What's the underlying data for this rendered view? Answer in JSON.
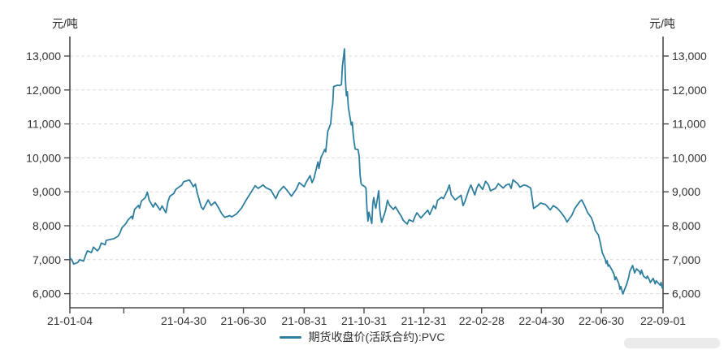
{
  "chart_data": {
    "type": "line",
    "title": "",
    "y_unit_left": "元/吨",
    "y_unit_right": "元/吨",
    "legend_label": "期货收盘价(活跃合约):PVC",
    "legend_position": "bottom-center",
    "grid": "horizontal-dashed",
    "ylim": [
      5584,
      13574
    ],
    "y_ticks": [
      6000,
      7000,
      8000,
      9000,
      10000,
      11000,
      12000,
      13000
    ],
    "x_ticks": [
      {
        "date": "21-01-04",
        "label": "21-01-04"
      },
      {
        "date": "21-02-28",
        "label": ""
      },
      {
        "date": "21-04-30",
        "label": "21-04-30"
      },
      {
        "date": "21-06-30",
        "label": "21-06-30"
      },
      {
        "date": "21-08-31",
        "label": "21-08-31"
      },
      {
        "date": "21-10-31",
        "label": "21-10-31"
      },
      {
        "date": "21-12-31",
        "label": "21-12-31"
      },
      {
        "date": "22-02-28",
        "label": "22-02-28"
      },
      {
        "date": "22-04-30",
        "label": "22-04-30"
      },
      {
        "date": "22-06-30",
        "label": "22-06-30"
      },
      {
        "date": "22-09-01",
        "label": "22-09-01"
      }
    ],
    "series": [
      {
        "name": "期货收盘价(活跃合约):PVC",
        "color": "#2e7f9f",
        "points": [
          [
            "21-01-04",
            7060
          ],
          [
            "21-01-06",
            6990
          ],
          [
            "21-01-08",
            6870
          ],
          [
            "21-01-12",
            6920
          ],
          [
            "21-01-14",
            7000
          ],
          [
            "21-01-18",
            6960
          ],
          [
            "21-01-20",
            7130
          ],
          [
            "21-01-22",
            7260
          ],
          [
            "21-01-26",
            7210
          ],
          [
            "21-01-28",
            7370
          ],
          [
            "21-02-01",
            7260
          ],
          [
            "21-02-03",
            7330
          ],
          [
            "21-02-05",
            7490
          ],
          [
            "21-02-09",
            7440
          ],
          [
            "21-02-10",
            7570
          ],
          [
            "21-02-18",
            7620
          ],
          [
            "21-02-22",
            7690
          ],
          [
            "21-02-24",
            7780
          ],
          [
            "21-02-26",
            7935
          ],
          [
            "21-03-02",
            8060
          ],
          [
            "21-03-04",
            8160
          ],
          [
            "21-03-08",
            8280
          ],
          [
            "21-03-09",
            8200
          ],
          [
            "21-03-11",
            8480
          ],
          [
            "21-03-15",
            8600
          ],
          [
            "21-03-16",
            8520
          ],
          [
            "21-03-18",
            8730
          ],
          [
            "21-03-22",
            8830
          ],
          [
            "21-03-24",
            8990
          ],
          [
            "21-03-26",
            8750
          ],
          [
            "21-03-30",
            8550
          ],
          [
            "21-04-01",
            8670
          ],
          [
            "21-04-06",
            8465
          ],
          [
            "21-04-08",
            8585
          ],
          [
            "21-04-12",
            8385
          ],
          [
            "21-04-14",
            8710
          ],
          [
            "21-04-16",
            8870
          ],
          [
            "21-04-20",
            8950
          ],
          [
            "21-04-22",
            9070
          ],
          [
            "21-04-26",
            9155
          ],
          [
            "21-04-28",
            9195
          ],
          [
            "21-04-30",
            9300
          ],
          [
            "21-05-06",
            9350
          ],
          [
            "21-05-10",
            9150
          ],
          [
            "21-05-12",
            9230
          ],
          [
            "21-05-14",
            8950
          ],
          [
            "21-05-18",
            8550
          ],
          [
            "21-05-20",
            8480
          ],
          [
            "21-05-25",
            8760
          ],
          [
            "21-05-28",
            8600
          ],
          [
            "21-06-01",
            8700
          ],
          [
            "21-06-04",
            8560
          ],
          [
            "21-06-08",
            8350
          ],
          [
            "21-06-11",
            8250
          ],
          [
            "21-06-16",
            8300
          ],
          [
            "21-06-18",
            8260
          ],
          [
            "21-06-23",
            8350
          ],
          [
            "21-06-28",
            8520
          ],
          [
            "21-07-02",
            8720
          ],
          [
            "21-07-07",
            8950
          ],
          [
            "21-07-12",
            9180
          ],
          [
            "21-07-15",
            9100
          ],
          [
            "21-07-20",
            9200
          ],
          [
            "21-07-23",
            9120
          ],
          [
            "21-07-28",
            9050
          ],
          [
            "21-08-02",
            8800
          ],
          [
            "21-08-05",
            9000
          ],
          [
            "21-08-10",
            9160
          ],
          [
            "21-08-13",
            9060
          ],
          [
            "21-08-18",
            8870
          ],
          [
            "21-08-23",
            9080
          ],
          [
            "21-08-26",
            9270
          ],
          [
            "21-08-31",
            9150
          ],
          [
            "21-09-02",
            9280
          ],
          [
            "21-09-06",
            9475
          ],
          [
            "21-09-08",
            9270
          ],
          [
            "21-09-10",
            9400
          ],
          [
            "21-09-14",
            9880
          ],
          [
            "21-09-15",
            9690
          ],
          [
            "21-09-17",
            10000
          ],
          [
            "21-09-21",
            10250
          ],
          [
            "21-09-22",
            10180
          ],
          [
            "21-09-24",
            10770
          ],
          [
            "21-09-27",
            11010
          ],
          [
            "21-09-28",
            11375
          ],
          [
            "21-09-29",
            11575
          ],
          [
            "21-09-30",
            12100
          ],
          [
            "21-10-04",
            12140
          ],
          [
            "21-10-06",
            12130
          ],
          [
            "21-10-08",
            12160
          ],
          [
            "21-10-09",
            12700
          ],
          [
            "21-10-11",
            13210
          ],
          [
            "21-10-12",
            12300
          ],
          [
            "21-10-13",
            11830
          ],
          [
            "21-10-14",
            11950
          ],
          [
            "21-10-15",
            11490
          ],
          [
            "21-10-18",
            10970
          ],
          [
            "21-10-19",
            11050
          ],
          [
            "21-10-20",
            10690
          ],
          [
            "21-10-21",
            10450
          ],
          [
            "21-10-22",
            10260
          ],
          [
            "21-10-25",
            10240
          ],
          [
            "21-10-26",
            10050
          ],
          [
            "21-10-27",
            9485
          ],
          [
            "21-10-28",
            9245
          ],
          [
            "21-10-29",
            9200
          ],
          [
            "21-11-01",
            9150
          ],
          [
            "21-11-02",
            9100
          ],
          [
            "21-11-03",
            8510
          ],
          [
            "21-11-04",
            8140
          ],
          [
            "21-11-05",
            8400
          ],
          [
            "21-11-08",
            8070
          ],
          [
            "21-11-09",
            8660
          ],
          [
            "21-11-10",
            8830
          ],
          [
            "21-11-11",
            8625
          ],
          [
            "21-11-12",
            8515
          ],
          [
            "21-11-15",
            9030
          ],
          [
            "21-11-16",
            8500
          ],
          [
            "21-11-17",
            8265
          ],
          [
            "21-11-18",
            8100
          ],
          [
            "21-11-22",
            8450
          ],
          [
            "21-11-24",
            8750
          ],
          [
            "21-11-26",
            8600
          ],
          [
            "21-11-30",
            8480
          ],
          [
            "21-12-02",
            8560
          ],
          [
            "21-12-06",
            8370
          ],
          [
            "21-12-08",
            8280
          ],
          [
            "21-12-10",
            8160
          ],
          [
            "21-12-14",
            8050
          ],
          [
            "21-12-16",
            8180
          ],
          [
            "21-12-20",
            8120
          ],
          [
            "21-12-22",
            8270
          ],
          [
            "21-12-24",
            8380
          ],
          [
            "21-12-28",
            8230
          ],
          [
            "22-01-04",
            8460
          ],
          [
            "22-01-06",
            8330
          ],
          [
            "22-01-10",
            8590
          ],
          [
            "22-01-12",
            8500
          ],
          [
            "22-01-14",
            8750
          ],
          [
            "22-01-18",
            8840
          ],
          [
            "22-01-20",
            8800
          ],
          [
            "22-01-24",
            9040
          ],
          [
            "22-01-26",
            9200
          ],
          [
            "22-01-28",
            8910
          ],
          [
            "22-02-01",
            8760
          ],
          [
            "22-02-07",
            8900
          ],
          [
            "22-02-09",
            8590
          ],
          [
            "22-02-11",
            8720
          ],
          [
            "22-02-15",
            9070
          ],
          [
            "22-02-17",
            9200
          ],
          [
            "22-02-21",
            8910
          ],
          [
            "22-02-23",
            9110
          ],
          [
            "22-02-25",
            9230
          ],
          [
            "22-03-01",
            9070
          ],
          [
            "22-03-04",
            9310
          ],
          [
            "22-03-07",
            9200
          ],
          [
            "22-03-09",
            9030
          ],
          [
            "22-03-14",
            9100
          ],
          [
            "22-03-17",
            9240
          ],
          [
            "22-03-22",
            9110
          ],
          [
            "22-03-25",
            9200
          ],
          [
            "22-03-28",
            9230
          ],
          [
            "22-03-30",
            9100
          ],
          [
            "22-04-01",
            9355
          ],
          [
            "22-04-06",
            9230
          ],
          [
            "22-04-08",
            9140
          ],
          [
            "22-04-12",
            9200
          ],
          [
            "22-04-15",
            9180
          ],
          [
            "22-04-19",
            9110
          ],
          [
            "22-04-22",
            8510
          ],
          [
            "22-04-26",
            8590
          ],
          [
            "22-04-29",
            8670
          ],
          [
            "22-05-04",
            8630
          ],
          [
            "22-05-09",
            8470
          ],
          [
            "22-05-12",
            8590
          ],
          [
            "22-05-16",
            8520
          ],
          [
            "22-05-20",
            8390
          ],
          [
            "22-05-24",
            8230
          ],
          [
            "22-05-26",
            8110
          ],
          [
            "22-05-31",
            8310
          ],
          [
            "22-06-03",
            8510
          ],
          [
            "22-06-08",
            8710
          ],
          [
            "22-06-10",
            8760
          ],
          [
            "22-06-13",
            8590
          ],
          [
            "22-06-16",
            8390
          ],
          [
            "22-06-20",
            8230
          ],
          [
            "22-06-22",
            8070
          ],
          [
            "22-06-24",
            7855
          ],
          [
            "22-06-27",
            7735
          ],
          [
            "22-06-29",
            7500
          ],
          [
            "22-07-01",
            7210
          ],
          [
            "22-07-04",
            7010
          ],
          [
            "22-07-05",
            6890
          ],
          [
            "22-07-06",
            6970
          ],
          [
            "22-07-07",
            6810
          ],
          [
            "22-07-08",
            6850
          ],
          [
            "22-07-11",
            6690
          ],
          [
            "22-07-13",
            6570
          ],
          [
            "22-07-14",
            6410
          ],
          [
            "22-07-15",
            6490
          ],
          [
            "22-07-18",
            6290
          ],
          [
            "22-07-19",
            6130
          ],
          [
            "22-07-20",
            6210
          ],
          [
            "22-07-22",
            5990
          ],
          [
            "22-07-26",
            6290
          ],
          [
            "22-07-28",
            6490
          ],
          [
            "22-07-29",
            6650
          ],
          [
            "22-08-01",
            6830
          ],
          [
            "22-08-03",
            6610
          ],
          [
            "22-08-05",
            6730
          ],
          [
            "22-08-08",
            6650
          ],
          [
            "22-08-09",
            6570
          ],
          [
            "22-08-10",
            6690
          ],
          [
            "22-08-12",
            6520
          ],
          [
            "22-08-15",
            6450
          ],
          [
            "22-08-16",
            6520
          ],
          [
            "22-08-18",
            6410
          ],
          [
            "22-08-19",
            6330
          ],
          [
            "22-08-22",
            6450
          ],
          [
            "22-08-24",
            6290
          ],
          [
            "22-08-25",
            6380
          ],
          [
            "22-08-29",
            6250
          ],
          [
            "22-08-30",
            6330
          ],
          [
            "22-08-31",
            6170
          ],
          [
            "22-09-01",
            6230
          ]
        ]
      }
    ]
  },
  "colors": {
    "line": "#2e7f9f",
    "axis": "#4a4a4a",
    "grid": "#dcdcdc",
    "tick_label": "#333333",
    "background": "#ffffff"
  }
}
